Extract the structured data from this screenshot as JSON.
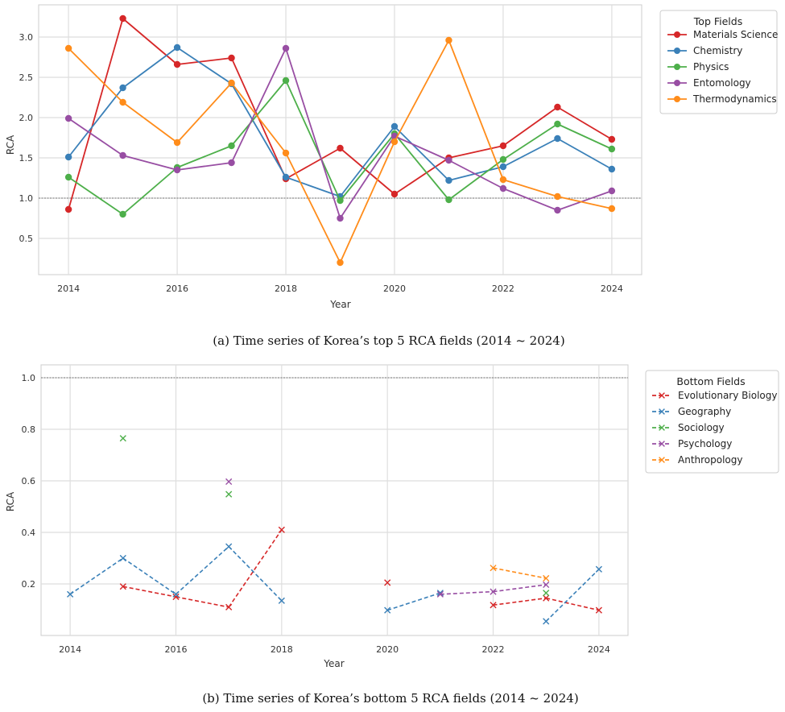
{
  "chart_data": [
    {
      "type": "line",
      "title": "",
      "xlabel": "Year",
      "ylabel": "RCA",
      "caption": "(a)  Time series of Korea’s top 5 RCA fields (2014 ~ 2024)",
      "xlim": [
        2013.45,
        2024.55
      ],
      "ylim": [
        0.05,
        3.4
      ],
      "xticks": [
        2014,
        2016,
        2018,
        2020,
        2022,
        2024
      ],
      "yticks": [
        0.5,
        1.0,
        1.5,
        2.0,
        2.5,
        3.0
      ],
      "ytick_labels": [
        "0.5",
        "1.0",
        "1.5",
        "2.0",
        "2.5",
        "3.0"
      ],
      "reference_line": 1.0,
      "legend_title": "Top Fields",
      "legend_position": "outside-right",
      "marker": "circle",
      "linestyle": "solid",
      "x": [
        2014,
        2015,
        2016,
        2017,
        2018,
        2019,
        2020,
        2021,
        2022,
        2023,
        2024
      ],
      "series": [
        {
          "name": "Materials Science",
          "color": "#d62728",
          "values": [
            0.86,
            3.23,
            2.66,
            2.74,
            1.24,
            1.62,
            1.05,
            1.5,
            1.65,
            2.13,
            1.73
          ]
        },
        {
          "name": "Chemistry",
          "color": "#3a80b8",
          "values": [
            1.51,
            2.37,
            2.87,
            2.42,
            1.26,
            1.02,
            1.89,
            1.22,
            1.39,
            1.74,
            1.36
          ]
        },
        {
          "name": "Physics",
          "color": "#4daf4a",
          "values": [
            1.26,
            0.8,
            1.38,
            1.65,
            2.46,
            0.97,
            1.8,
            0.98,
            1.48,
            1.92,
            1.61
          ]
        },
        {
          "name": "Entomology",
          "color": "#984ea3",
          "values": [
            1.99,
            1.53,
            1.35,
            1.44,
            2.86,
            0.75,
            1.77,
            1.47,
            1.12,
            0.85,
            1.09
          ]
        },
        {
          "name": "Thermodynamics",
          "color": "#ff8c1a",
          "values": [
            2.86,
            2.19,
            1.69,
            2.43,
            1.56,
            0.2,
            1.7,
            2.96,
            1.23,
            1.02,
            0.87
          ]
        }
      ]
    },
    {
      "type": "line",
      "title": "",
      "xlabel": "Year",
      "ylabel": "RCA",
      "caption": "(b)  Time series of Korea’s bottom 5 RCA fields (2014 ~ 2024)",
      "xlim": [
        2013.45,
        2024.55
      ],
      "ylim": [
        0.0,
        1.05
      ],
      "xticks": [
        2014,
        2016,
        2018,
        2020,
        2022,
        2024
      ],
      "yticks": [
        0.2,
        0.4,
        0.6,
        0.8,
        1.0
      ],
      "ytick_labels": [
        "0.2",
        "0.4",
        "0.6",
        "0.8",
        "1.0"
      ],
      "reference_line": 1.0,
      "legend_title": "Bottom Fields",
      "legend_position": "outside-right",
      "marker": "x",
      "linestyle": "dashed",
      "x": [
        2014,
        2015,
        2016,
        2017,
        2018,
        2019,
        2020,
        2021,
        2022,
        2023,
        2024
      ],
      "series": [
        {
          "name": "Evolutionary Biology",
          "color": "#d62728",
          "values": [
            null,
            0.19,
            0.15,
            0.11,
            0.41,
            null,
            0.205,
            null,
            0.118,
            0.145,
            0.098
          ]
        },
        {
          "name": "Geography",
          "color": "#3a80b8",
          "values": [
            0.16,
            0.3,
            0.16,
            0.345,
            0.135,
            null,
            0.098,
            0.165,
            null,
            0.055,
            0.257
          ]
        },
        {
          "name": "Sociology",
          "color": "#4daf4a",
          "values": [
            null,
            0.765,
            null,
            0.548,
            null,
            null,
            null,
            null,
            null,
            0.165,
            null
          ]
        },
        {
          "name": "Psychology",
          "color": "#984ea3",
          "values": [
            null,
            null,
            null,
            0.597,
            null,
            null,
            null,
            0.16,
            0.17,
            0.197,
            null
          ]
        },
        {
          "name": "Anthropology",
          "color": "#ff8c1a",
          "values": [
            null,
            null,
            null,
            null,
            null,
            null,
            null,
            null,
            0.262,
            0.222,
            null
          ]
        }
      ]
    }
  ]
}
